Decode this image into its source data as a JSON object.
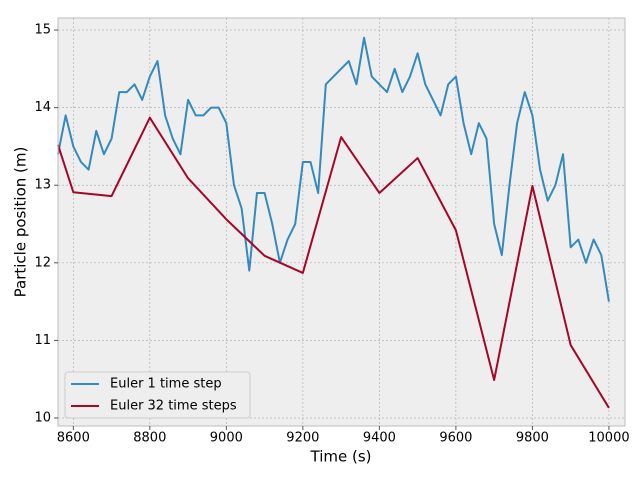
{
  "chart_data": {
    "type": "line",
    "xlabel": "Time (s)",
    "ylabel": "Particle position (m)",
    "xlim": [
      8560,
      10042
    ],
    "ylim": [
      9.897,
      15.155
    ],
    "xticks": [
      8600,
      8800,
      9000,
      9200,
      9400,
      9600,
      9800,
      10000
    ],
    "yticks": [
      10,
      11,
      12,
      13,
      14,
      15
    ],
    "grid": true,
    "legend": "lower left",
    "series": [
      {
        "name": "Euler 1 time step",
        "color": "#348abd",
        "x": [
          8560,
          8580,
          8600,
          8620,
          8640,
          8660,
          8680,
          8700,
          8720,
          8740,
          8760,
          8780,
          8800,
          8820,
          8840,
          8860,
          8880,
          8900,
          8920,
          8940,
          8960,
          8980,
          9000,
          9020,
          9040,
          9060,
          9080,
          9100,
          9120,
          9140,
          9160,
          9180,
          9200,
          9220,
          9240,
          9260,
          9280,
          9300,
          9320,
          9340,
          9360,
          9380,
          9400,
          9420,
          9440,
          9460,
          9480,
          9500,
          9520,
          9540,
          9560,
          9580,
          9600,
          9620,
          9640,
          9660,
          9680,
          9700,
          9720,
          9740,
          9760,
          9780,
          9800,
          9820,
          9840,
          9860,
          9880,
          9900,
          9920,
          9940,
          9960,
          9980,
          10000
        ],
        "values": [
          13.4,
          13.9,
          13.5,
          13.3,
          13.2,
          13.7,
          13.4,
          13.6,
          14.2,
          14.2,
          14.3,
          14.1,
          14.4,
          14.6,
          13.9,
          13.6,
          13.4,
          14.1,
          13.9,
          13.9,
          14.0,
          14.0,
          13.8,
          13.0,
          12.7,
          11.9,
          12.9,
          12.9,
          12.5,
          12.0,
          12.3,
          12.5,
          13.3,
          13.3,
          12.9,
          14.3,
          14.4,
          14.5,
          14.6,
          14.3,
          14.9,
          14.4,
          14.3,
          14.2,
          14.5,
          14.2,
          14.4,
          14.7,
          14.3,
          14.1,
          13.9,
          14.3,
          14.4,
          13.8,
          13.4,
          13.8,
          13.6,
          12.5,
          12.1,
          13.0,
          13.8,
          14.2,
          13.9,
          13.2,
          12.8,
          13.0,
          13.4,
          12.2,
          12.3,
          12.0,
          12.3,
          12.1,
          11.5
        ]
      },
      {
        "name": "Euler 32 time steps",
        "color": "#a60628",
        "x": [
          8560,
          8600,
          8700,
          8800,
          8900,
          9000,
          9100,
          9200,
          9300,
          9400,
          9500,
          9600,
          9700,
          9800,
          9900,
          10000
        ],
        "values": [
          13.52,
          12.91,
          12.86,
          13.87,
          13.09,
          12.56,
          12.09,
          11.87,
          13.62,
          12.9,
          13.35,
          12.42,
          10.49,
          12.99,
          10.94,
          10.13
        ]
      }
    ]
  }
}
